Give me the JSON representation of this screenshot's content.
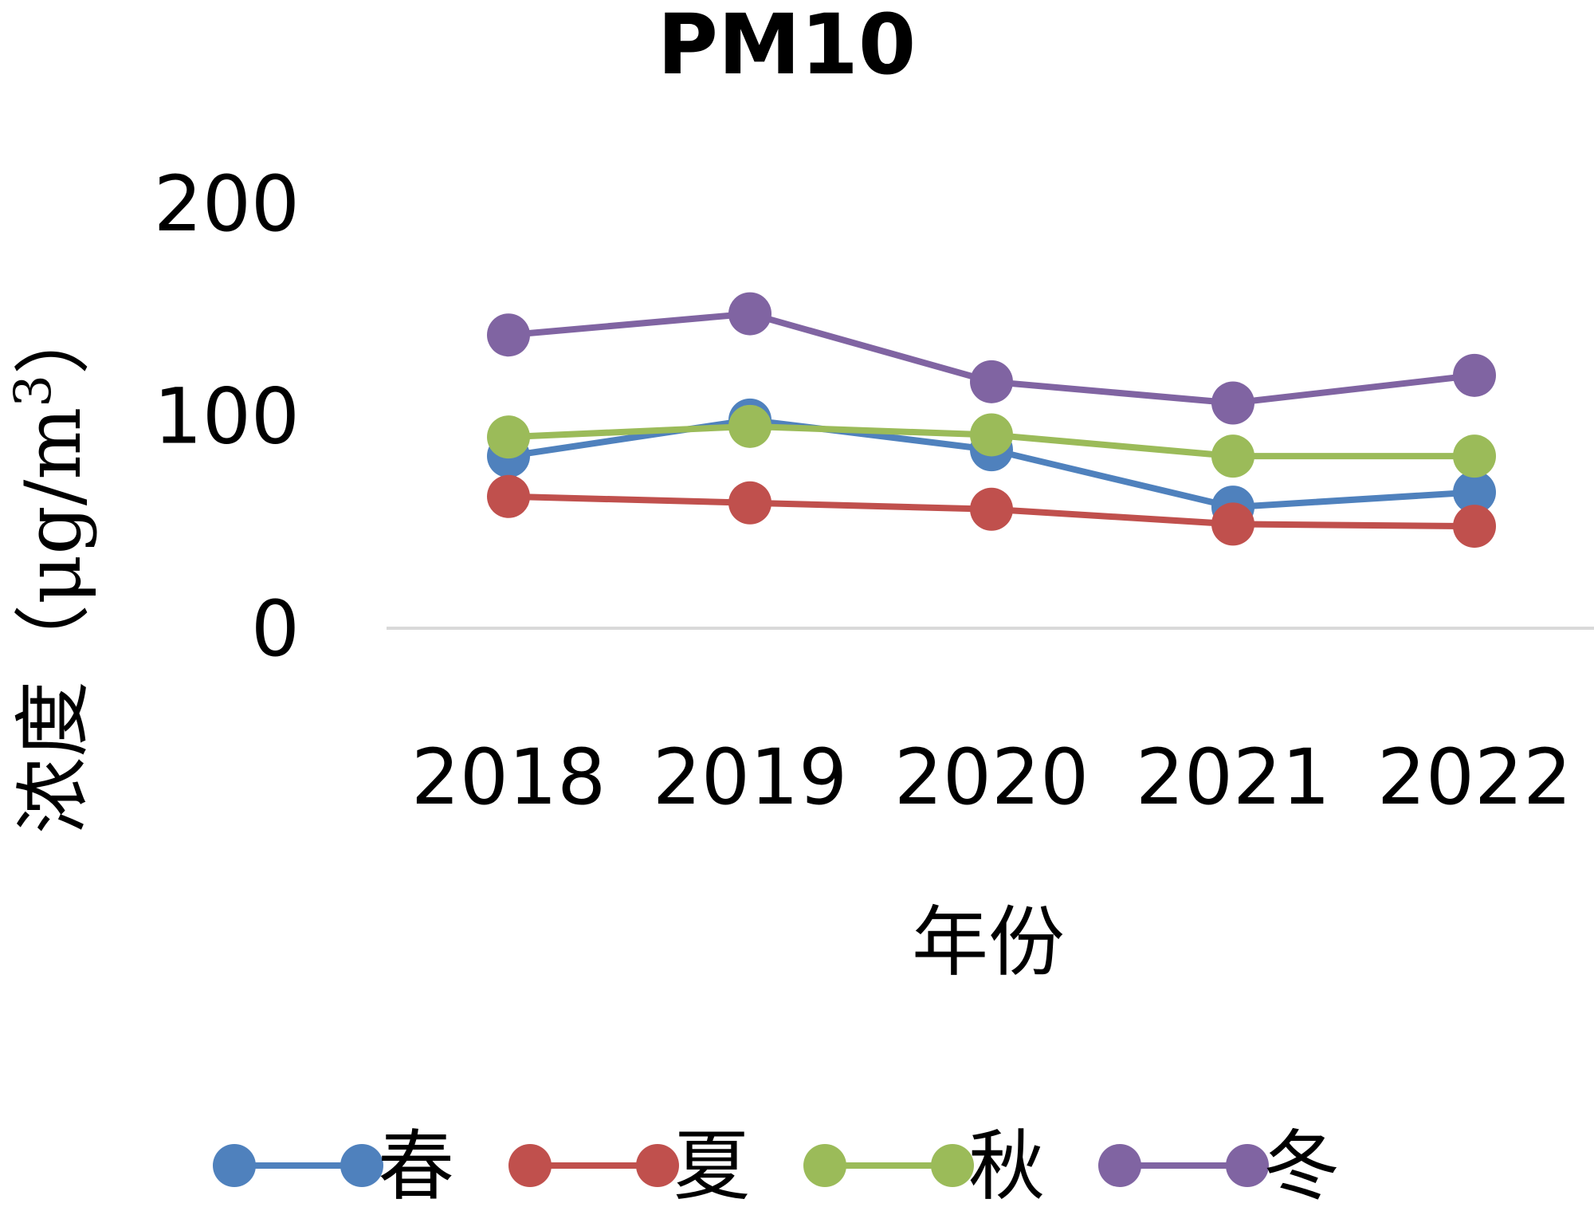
{
  "chart_data": {
    "type": "line",
    "title": "PM10",
    "xlabel": "年份",
    "ylabel": "浓度（μg/m",
    "ylabel_superscript": "3",
    "ylabel_close": "）",
    "categories": [
      "2018",
      "2019",
      "2020",
      "2021",
      "2022"
    ],
    "ylim": [
      0,
      200
    ],
    "yticks": [
      0,
      100,
      200
    ],
    "ytick_labels": [
      "0",
      "100",
      "200"
    ],
    "grid": false,
    "legend_position": "bottom",
    "series": [
      {
        "name": "春",
        "color": "#4F81BD",
        "values": [
          81,
          98,
          84,
          57,
          64
        ]
      },
      {
        "name": "夏",
        "color": "#C0504D",
        "values": [
          62,
          59,
          56,
          49,
          48
        ]
      },
      {
        "name": "秋",
        "color": "#9BBB59",
        "values": [
          90,
          95,
          91,
          81,
          81
        ]
      },
      {
        "name": "冬",
        "color": "#8064A2",
        "values": [
          138,
          148,
          116,
          106,
          119
        ]
      }
    ]
  }
}
